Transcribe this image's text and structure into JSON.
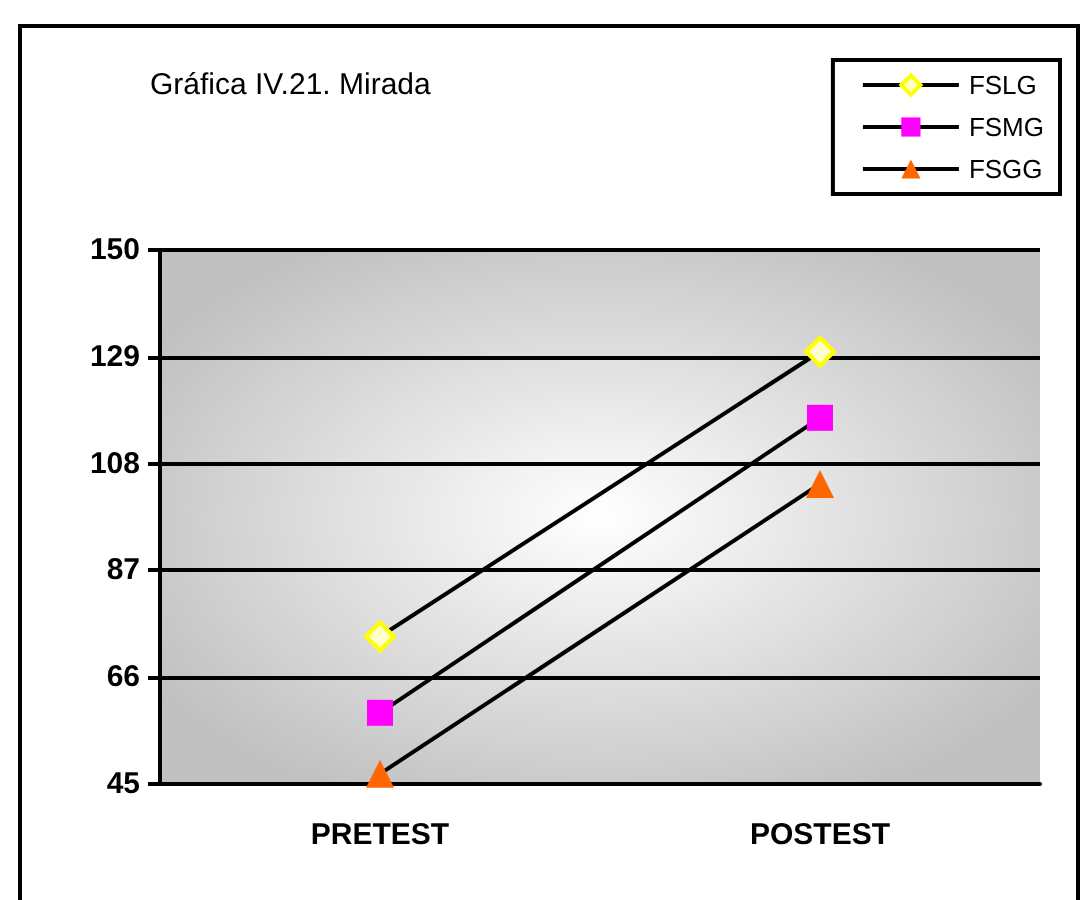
{
  "chart_data": {
    "type": "line",
    "title": "Gráfica IV.21. Mirada",
    "categories": [
      "PRETEST",
      "POSTEST"
    ],
    "series": [
      {
        "name": "FSLG",
        "color": "#ffff00",
        "marker": "diamond",
        "values": [
          74,
          130
        ]
      },
      {
        "name": "FSMG",
        "color": "#ff00ff",
        "marker": "square",
        "values": [
          59,
          117
        ]
      },
      {
        "name": "FSGG",
        "color": "#ff6600",
        "marker": "triangle",
        "values": [
          47,
          104
        ]
      }
    ],
    "ylim": [
      45,
      150
    ],
    "yticks": [
      45,
      66,
      87,
      108,
      129,
      150
    ],
    "grid": "y",
    "legend": "top right",
    "line_style": "solid"
  }
}
